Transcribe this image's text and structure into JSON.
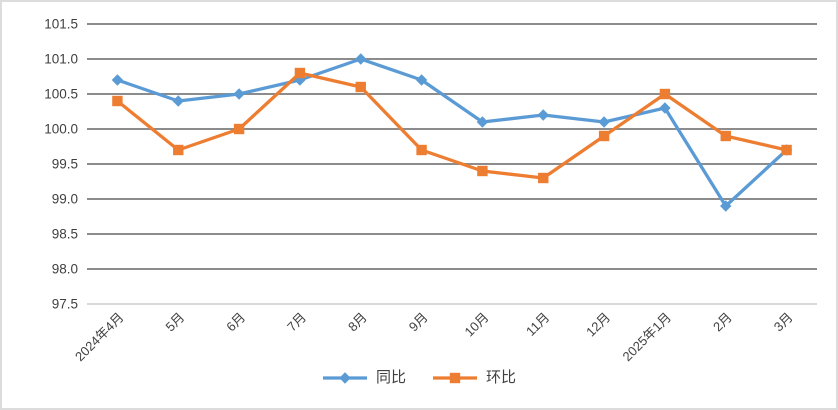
{
  "chart_data": {
    "type": "line",
    "categories": [
      "2024年4月",
      "5月",
      "6月",
      "7月",
      "8月",
      "9月",
      "10月",
      "11月",
      "12月",
      "2025年1月",
      "2月",
      "3月"
    ],
    "series": [
      {
        "name": "同比",
        "marker": "diamond",
        "color": "#5B9BD5",
        "values": [
          100.7,
          100.4,
          100.5,
          100.7,
          101.0,
          100.7,
          100.1,
          100.2,
          100.1,
          100.3,
          98.9,
          99.7
        ]
      },
      {
        "name": "环比",
        "marker": "square",
        "color": "#ED7D31",
        "values": [
          100.4,
          99.7,
          100.0,
          100.8,
          100.6,
          99.7,
          99.4,
          99.3,
          99.9,
          100.5,
          99.9,
          99.7
        ]
      }
    ],
    "title": "",
    "xlabel": "",
    "ylabel": "",
    "ylim": [
      97.5,
      101.5
    ],
    "ytick_step": 0.5,
    "ytick_labels": [
      "101.5",
      "101.0",
      "100.5",
      "100.0",
      "99.5",
      "99.0",
      "98.5",
      "98.0",
      "97.5"
    ],
    "grid": "horizontal",
    "legend_position": "bottom",
    "colors": {
      "gridline": "#8c8c8c",
      "axis_line": "#d9d9d9",
      "text": "#404040",
      "background": "#ffffff",
      "border": "#dcdcdc"
    }
  }
}
